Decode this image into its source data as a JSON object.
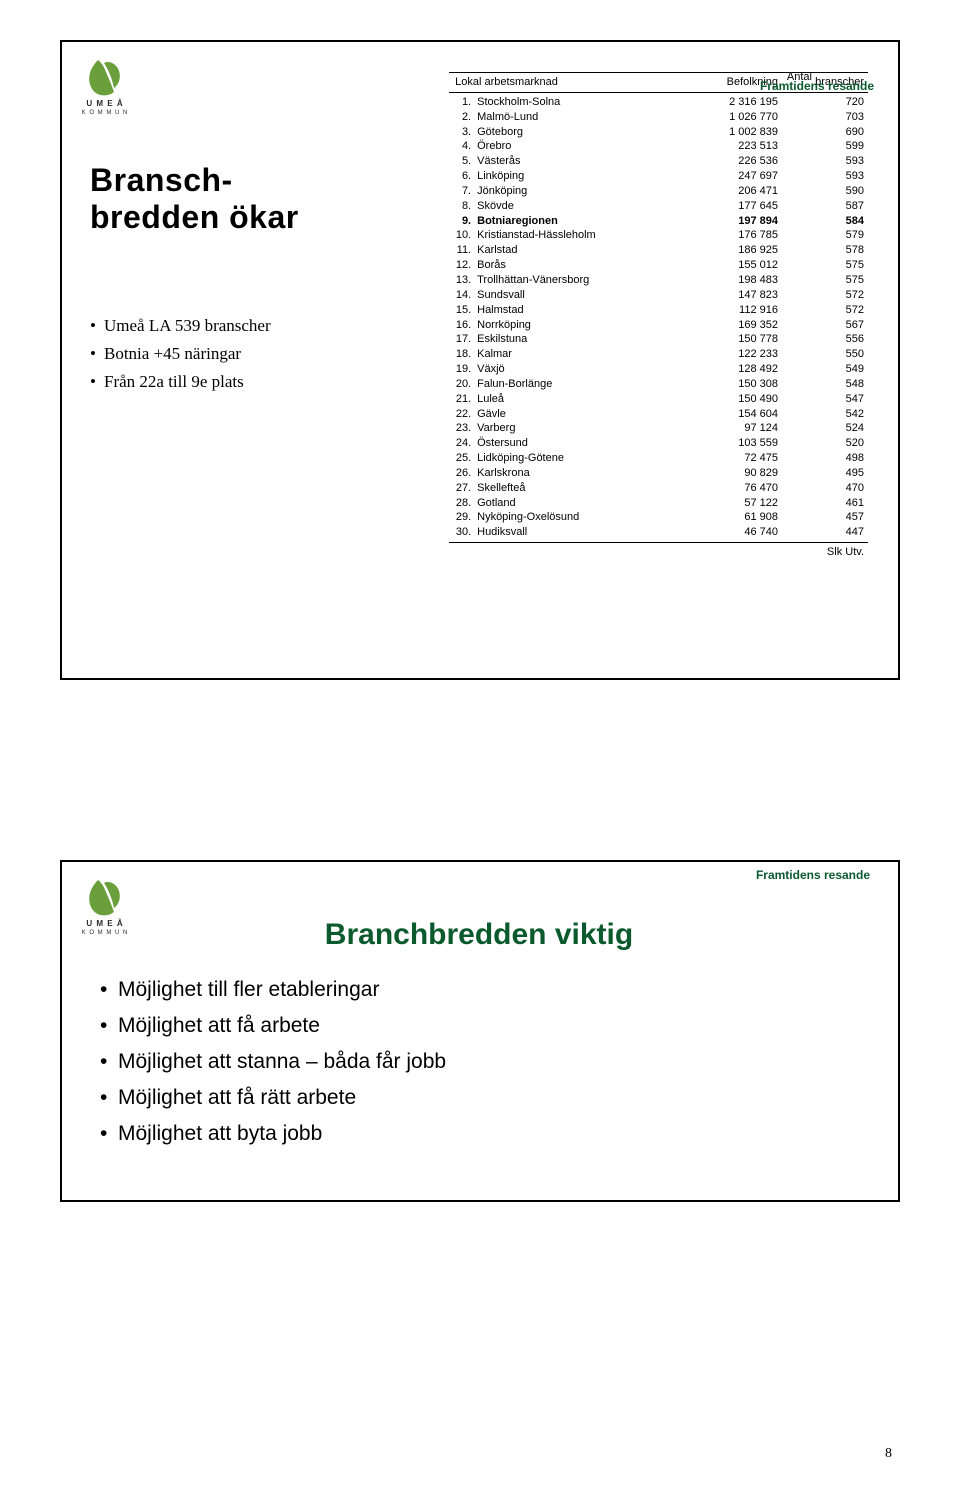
{
  "brand_text": "Framtidens resande",
  "brand_color": "#0b5a2e",
  "logo": {
    "name": "UMEÅ KOMMUN",
    "leaf_color": "#6a9f3b",
    "text_color": "#2a2a2a"
  },
  "slide1": {
    "title_line1": "Bransch-",
    "title_line2": "bredden ökar",
    "bullets": [
      "Umeå LA 539 branscher",
      "Botnia +45 näringar",
      "Från 22a till 9e plats"
    ],
    "table": {
      "header": {
        "market": "Lokal arbetsmarknad",
        "pop": "Befolkning",
        "branches_line1": "Antal",
        "branches_line2": "branscher"
      },
      "highlight_rank": 9,
      "rows": [
        {
          "rank": "1.",
          "name": "Stockholm-Solna",
          "pop": "2 316 195",
          "br": "720"
        },
        {
          "rank": "2.",
          "name": "Malmö-Lund",
          "pop": "1 026 770",
          "br": "703"
        },
        {
          "rank": "3.",
          "name": "Göteborg",
          "pop": "1 002 839",
          "br": "690"
        },
        {
          "rank": "4.",
          "name": "Örebro",
          "pop": "223 513",
          "br": "599"
        },
        {
          "rank": "5.",
          "name": "Västerås",
          "pop": "226 536",
          "br": "593"
        },
        {
          "rank": "6.",
          "name": "Linköping",
          "pop": "247 697",
          "br": "593"
        },
        {
          "rank": "7.",
          "name": "Jönköping",
          "pop": "206 471",
          "br": "590"
        },
        {
          "rank": "8.",
          "name": "Skövde",
          "pop": "177 645",
          "br": "587"
        },
        {
          "rank": "9.",
          "name": "Botniaregionen",
          "pop": "197 894",
          "br": "584"
        },
        {
          "rank": "10.",
          "name": "Kristianstad-Hässleholm",
          "pop": "176 785",
          "br": "579"
        },
        {
          "rank": "11.",
          "name": "Karlstad",
          "pop": "186 925",
          "br": "578"
        },
        {
          "rank": "12.",
          "name": "Borås",
          "pop": "155 012",
          "br": "575"
        },
        {
          "rank": "13.",
          "name": "Trollhättan-Vänersborg",
          "pop": "198 483",
          "br": "575"
        },
        {
          "rank": "14.",
          "name": "Sundsvall",
          "pop": "147 823",
          "br": "572"
        },
        {
          "rank": "15.",
          "name": "Halmstad",
          "pop": "112 916",
          "br": "572"
        },
        {
          "rank": "16.",
          "name": "Norrköping",
          "pop": "169 352",
          "br": "567"
        },
        {
          "rank": "17.",
          "name": "Eskilstuna",
          "pop": "150 778",
          "br": "556"
        },
        {
          "rank": "18.",
          "name": "Kalmar",
          "pop": "122 233",
          "br": "550"
        },
        {
          "rank": "19.",
          "name": "Växjö",
          "pop": "128 492",
          "br": "549"
        },
        {
          "rank": "20.",
          "name": "Falun-Borlänge",
          "pop": "150 308",
          "br": "548"
        },
        {
          "rank": "21.",
          "name": "Luleå",
          "pop": "150 490",
          "br": "547"
        },
        {
          "rank": "22.",
          "name": "Gävle",
          "pop": "154 604",
          "br": "542"
        },
        {
          "rank": "23.",
          "name": "Varberg",
          "pop": "97 124",
          "br": "524"
        },
        {
          "rank": "24.",
          "name": "Östersund",
          "pop": "103 559",
          "br": "520"
        },
        {
          "rank": "25.",
          "name": "Lidköping-Götene",
          "pop": "72 475",
          "br": "498"
        },
        {
          "rank": "26.",
          "name": "Karlskrona",
          "pop": "90 829",
          "br": "495"
        },
        {
          "rank": "27.",
          "name": "Skellefteå",
          "pop": "76 470",
          "br": "470"
        },
        {
          "rank": "28.",
          "name": "Gotland",
          "pop": "57 122",
          "br": "461"
        },
        {
          "rank": "29.",
          "name": "Nyköping-Oxelösund",
          "pop": "61 908",
          "br": "457"
        },
        {
          "rank": "30.",
          "name": "Hudiksvall",
          "pop": "46 740",
          "br": "447"
        }
      ],
      "footer": "Slk Utv."
    }
  },
  "slide2": {
    "title": "Branchbredden viktig",
    "bullets": [
      "Möjlighet till fler etableringar",
      "Möjlighet att få arbete",
      "Möjlighet att stanna – båda får jobb",
      "Möjlighet att få rätt arbete",
      "Möjlighet att byta jobb"
    ]
  },
  "page_number": "8"
}
